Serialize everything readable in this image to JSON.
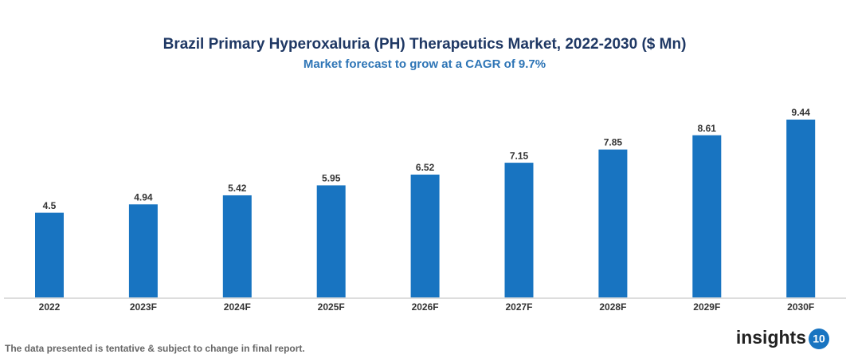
{
  "chart_data": {
    "type": "bar",
    "title": "Brazil Primary Hyperoxaluria (PH) Therapeutics Market, 2022-2030 ($ Mn)",
    "subtitle": "Market forecast to grow at a CAGR of 9.7%",
    "categories": [
      "2022",
      "2023F",
      "2024F",
      "2025F",
      "2026F",
      "2027F",
      "2028F",
      "2029F",
      "2030F"
    ],
    "values": [
      4.5,
      4.94,
      5.42,
      5.95,
      6.52,
      7.15,
      7.85,
      8.61,
      9.44
    ],
    "color": "#1874c1"
  },
  "footnote": "The data presented is tentative & subject to change in final report.",
  "logo": {
    "text": "insights",
    "badge": "10"
  }
}
